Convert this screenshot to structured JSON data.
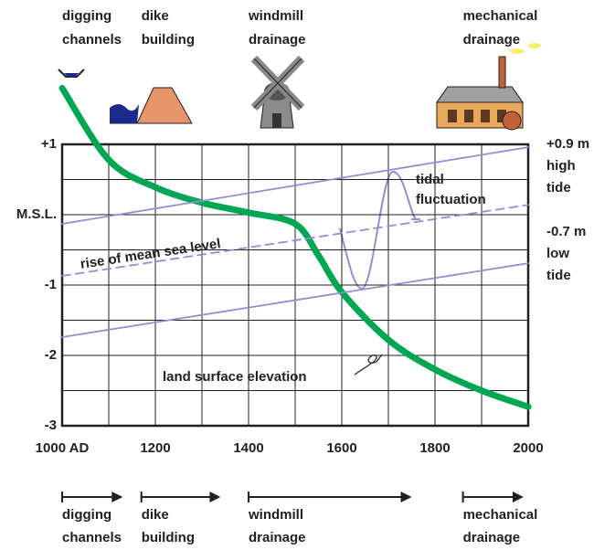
{
  "chart_data": {
    "type": "line",
    "xlim": [
      1000,
      2000
    ],
    "ylim": [
      -3,
      1
    ],
    "xticks": [
      {
        "value": 1000,
        "label": "1000 AD"
      },
      1200,
      1400,
      1600,
      1800,
      2000
    ],
    "yticks": [
      -3,
      -2,
      -1,
      {
        "value": 0,
        "label": "M.S.L."
      },
      {
        "value": 1,
        "label": "+1"
      }
    ],
    "x_minor_ticks": [
      1100,
      1300,
      1500,
      1700,
      1900
    ],
    "y_minor_ticks": [
      -2.5,
      -1.5,
      -0.5,
      0.5
    ],
    "grid": true,
    "series": [
      {
        "name": "land surface elevation",
        "color": "#00a651",
        "x": [
          1000,
          1100,
          1200,
          1300,
          1400,
          1500,
          1550,
          1600,
          1700,
          1800,
          1900,
          2000
        ],
        "values": [
          1.8,
          0.78,
          0.39,
          0.17,
          0.03,
          -0.13,
          -0.58,
          -1.1,
          -1.78,
          -2.2,
          -2.5,
          -2.73
        ]
      },
      {
        "name": "rise of mean sea level",
        "color": "#8f8fd6",
        "dashed": true,
        "x": [
          1000,
          2000
        ],
        "values": [
          -0.87,
          0.14
        ]
      },
      {
        "color": "#8f8fd6",
        "x": [
          1000,
          2000
        ],
        "values": [
          -0.13,
          0.96
        ],
        "label_lines": [
          "+0.9 m",
          "high",
          "tide"
        ]
      },
      {
        "color": "#8f8fd6",
        "x": [
          1000,
          2000
        ],
        "values": [
          -1.74,
          -0.69
        ],
        "label_lines": [
          "-0.7 m",
          "low",
          "tide"
        ]
      }
    ],
    "annotation": [
      "tidal",
      "fluctuation"
    ],
    "periods": [
      {
        "label_lines": [
          "digging",
          "channels"
        ],
        "start": 1000,
        "end": 1130
      },
      {
        "label_lines": [
          "dike",
          "building"
        ],
        "start": 1170,
        "end": 1340
      },
      {
        "label_lines": [
          "windmill",
          "drainage"
        ],
        "start": 1400,
        "end": 1750
      },
      {
        "label_lines": [
          "mechanical",
          "drainage"
        ],
        "start": 1860,
        "end": 1990
      }
    ]
  }
}
